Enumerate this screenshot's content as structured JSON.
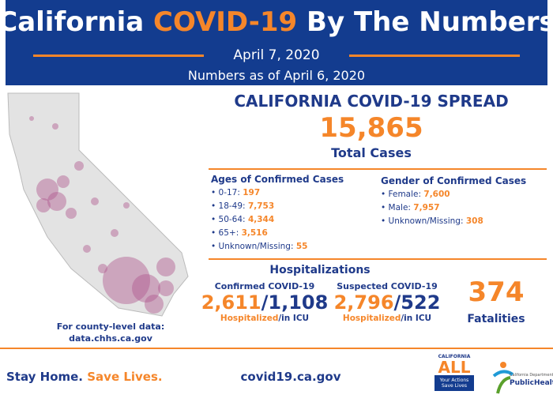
{
  "header": {
    "title_part1": "California",
    "title_highlight": "COVID-19",
    "title_part2": "By The Numbers",
    "date": "April 7, 2020",
    "subtitle": "Numbers as of April 6, 2020"
  },
  "spread": {
    "title": "CALIFORNIA COVID-19 SPREAD",
    "total": "15,865",
    "total_label": "Total Cases"
  },
  "ages": {
    "title": "Ages of Confirmed Cases",
    "items": [
      {
        "label": "0-17:",
        "value": "197"
      },
      {
        "label": "18-49:",
        "value": "7,753"
      },
      {
        "label": "50-64:",
        "value": "4,344"
      },
      {
        "label": "65+:",
        "value": "3,516"
      },
      {
        "label": "Unknown/Missing:",
        "value": "55"
      }
    ]
  },
  "gender": {
    "title": "Gender of Confirmed Cases",
    "items": [
      {
        "label": "Female:",
        "value": "7,600"
      },
      {
        "label": "Male:",
        "value": "7,957"
      },
      {
        "label": "Unknown/Missing:",
        "value": "308"
      }
    ]
  },
  "hospitalizations": {
    "title": "Hospitalizations",
    "confirmed": {
      "title": "Confirmed COVID-19",
      "hospitalized": "2,611",
      "separator": "/",
      "icu": "1,108",
      "caption_a": "Hospitalized",
      "caption_b": "/in ICU"
    },
    "suspected": {
      "title": "Suspected COVID-19",
      "hospitalized": "2,796",
      "separator": "/",
      "icu": "522",
      "caption_a": "Hospitalized",
      "caption_b": "/in ICU"
    }
  },
  "fatalities": {
    "value": "374",
    "label": "Fatalities"
  },
  "map_note": {
    "line1": "For county-level data:",
    "line2": "data.chhs.ca.gov"
  },
  "footer": {
    "slogan_a": "Stay Home.",
    "slogan_b": "Save Lives.",
    "url": "covid19.ca.gov",
    "logo": {
      "top": "CALIFORNIA",
      "main": "ALL",
      "line1": "Your Actions",
      "line2": "Save Lives"
    },
    "dept": {
      "line1": "California Department of",
      "line2": "PublicHealth"
    }
  }
}
